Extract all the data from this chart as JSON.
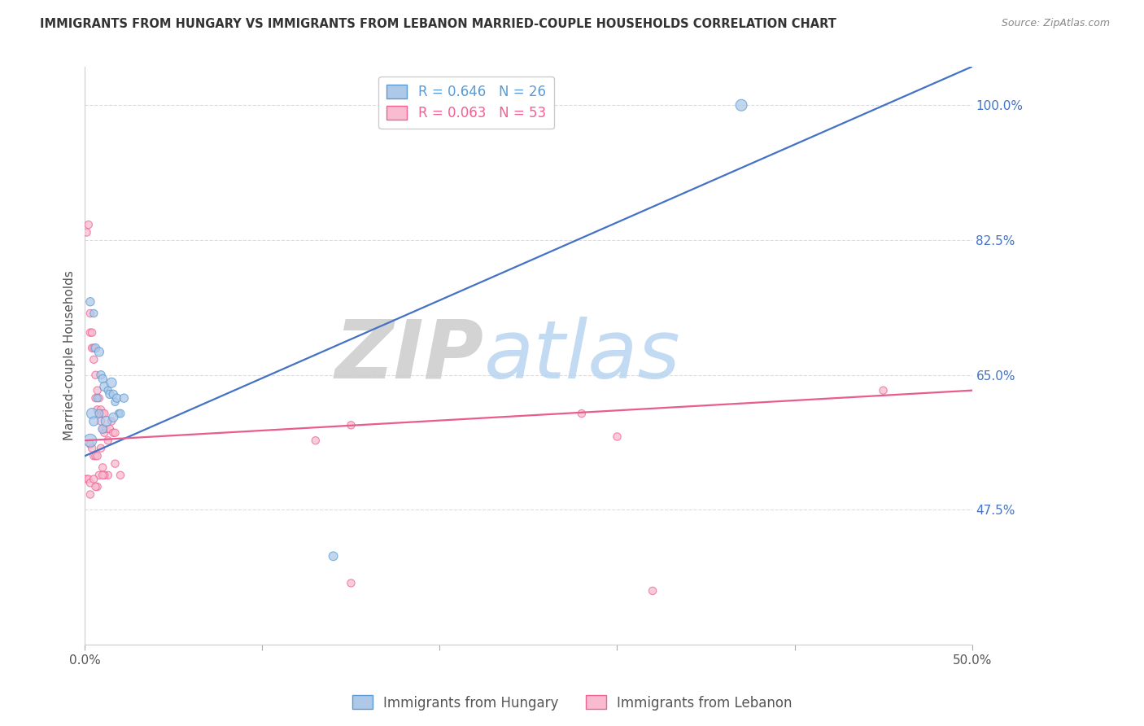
{
  "title": "IMMIGRANTS FROM HUNGARY VS IMMIGRANTS FROM LEBANON MARRIED-COUPLE HOUSEHOLDS CORRELATION CHART",
  "source": "Source: ZipAtlas.com",
  "ylabel_label": "Married-couple Households",
  "xlim": [
    0.0,
    0.5
  ],
  "ylim": [
    0.3,
    1.05
  ],
  "xticks": [
    0.0,
    0.1,
    0.2,
    0.3,
    0.4,
    0.5
  ],
  "xtick_labels": [
    "0.0%",
    "",
    "",
    "",
    "",
    "50.0%"
  ],
  "ytick_labels": [
    "100.0%",
    "82.5%",
    "65.0%",
    "47.5%"
  ],
  "ytick_vals": [
    1.0,
    0.825,
    0.65,
    0.475
  ],
  "legend_entries": [
    {
      "label": "R = 0.646   N = 26",
      "color": "#5b9bd5"
    },
    {
      "label": "R = 0.063   N = 53",
      "color": "#f06292"
    }
  ],
  "watermark_zip": "ZIP",
  "watermark_atlas": "atlas",
  "hungary_color": "#aec9e8",
  "hungary_edge": "#5b9bd5",
  "lebanon_color": "#f8bbd0",
  "lebanon_edge": "#f06292",
  "trend_hungary_color": "#4472c4",
  "trend_lebanon_color": "#e85d8a",
  "hungary_trend_x0": 0.0,
  "hungary_trend_y0": 0.545,
  "hungary_trend_x1": 0.5,
  "hungary_trend_y1": 1.05,
  "lebanon_trend_x0": 0.0,
  "lebanon_trend_y0": 0.565,
  "lebanon_trend_x1": 0.5,
  "lebanon_trend_y1": 0.63,
  "hungary_x": [
    0.003,
    0.005,
    0.006,
    0.008,
    0.009,
    0.01,
    0.011,
    0.013,
    0.014,
    0.015,
    0.016,
    0.017,
    0.018,
    0.019,
    0.02,
    0.022,
    0.003,
    0.004,
    0.005,
    0.007,
    0.008,
    0.01,
    0.012,
    0.016,
    0.14,
    0.37
  ],
  "hungary_y": [
    0.745,
    0.73,
    0.685,
    0.68,
    0.65,
    0.645,
    0.635,
    0.63,
    0.625,
    0.64,
    0.625,
    0.615,
    0.62,
    0.6,
    0.6,
    0.62,
    0.565,
    0.6,
    0.59,
    0.62,
    0.6,
    0.58,
    0.59,
    0.595,
    0.415,
    1.0
  ],
  "hungary_size": [
    55,
    45,
    55,
    65,
    55,
    55,
    65,
    45,
    55,
    75,
    55,
    45,
    55,
    45,
    50,
    55,
    130,
    90,
    65,
    45,
    50,
    60,
    80,
    65,
    60,
    100
  ],
  "lebanon_x": [
    0.001,
    0.002,
    0.003,
    0.003,
    0.004,
    0.004,
    0.005,
    0.005,
    0.006,
    0.006,
    0.007,
    0.007,
    0.008,
    0.008,
    0.009,
    0.009,
    0.01,
    0.01,
    0.011,
    0.011,
    0.012,
    0.013,
    0.014,
    0.015,
    0.016,
    0.017,
    0.003,
    0.004,
    0.005,
    0.006,
    0.007,
    0.008,
    0.009,
    0.01,
    0.013,
    0.017,
    0.02,
    0.001,
    0.002,
    0.003,
    0.005,
    0.007,
    0.011,
    0.15,
    0.13,
    0.28,
    0.3,
    0.45,
    0.003,
    0.006,
    0.01,
    0.32,
    0.15
  ],
  "lebanon_y": [
    0.835,
    0.845,
    0.73,
    0.705,
    0.705,
    0.685,
    0.685,
    0.67,
    0.65,
    0.62,
    0.63,
    0.605,
    0.62,
    0.6,
    0.59,
    0.605,
    0.6,
    0.58,
    0.6,
    0.575,
    0.58,
    0.565,
    0.58,
    0.59,
    0.575,
    0.575,
    0.56,
    0.555,
    0.545,
    0.545,
    0.545,
    0.52,
    0.555,
    0.53,
    0.52,
    0.535,
    0.52,
    0.515,
    0.515,
    0.51,
    0.515,
    0.505,
    0.52,
    0.585,
    0.565,
    0.6,
    0.57,
    0.63,
    0.495,
    0.505,
    0.52,
    0.37,
    0.38
  ],
  "lebanon_size": [
    45,
    45,
    45,
    45,
    45,
    45,
    45,
    45,
    45,
    45,
    45,
    45,
    45,
    45,
    45,
    45,
    45,
    45,
    45,
    45,
    45,
    45,
    45,
    45,
    45,
    45,
    45,
    45,
    45,
    45,
    45,
    45,
    45,
    45,
    45,
    45,
    45,
    45,
    45,
    45,
    45,
    45,
    45,
    45,
    45,
    45,
    45,
    45,
    45,
    45,
    45,
    45,
    45
  ]
}
